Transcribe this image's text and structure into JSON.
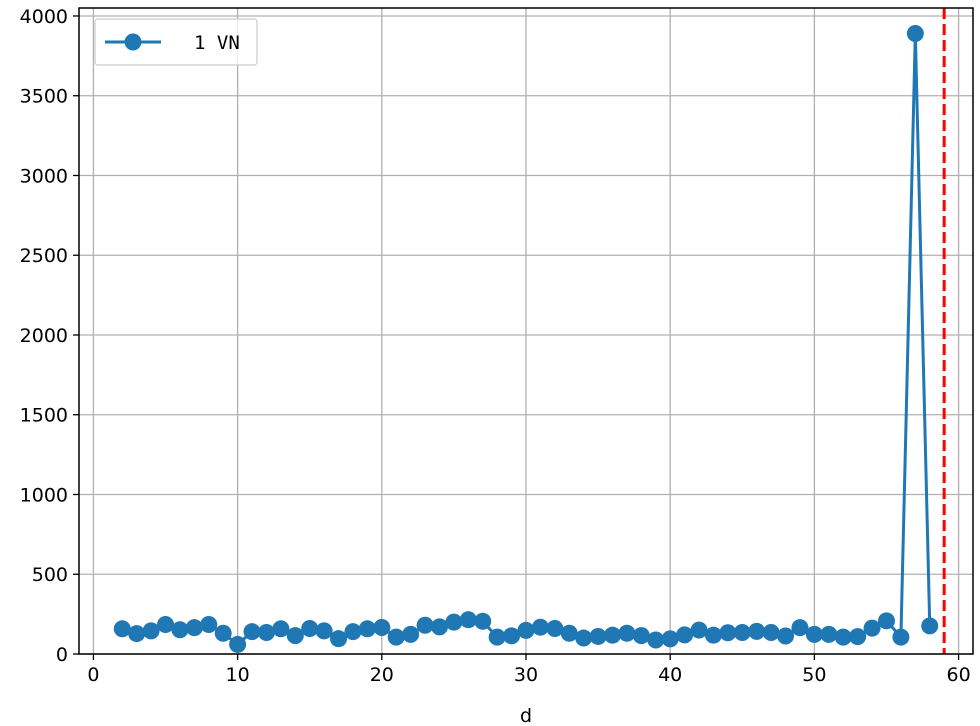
{
  "chart_data": {
    "type": "line",
    "title": "",
    "xlabel": "d",
    "ylabel": "",
    "xlim": [
      -1,
      61
    ],
    "ylim": [
      0,
      4050
    ],
    "x_ticks": [
      0,
      10,
      20,
      30,
      40,
      50,
      60
    ],
    "y_ticks": [
      0,
      500,
      1000,
      1500,
      2000,
      2500,
      3000,
      3500,
      4000
    ],
    "grid": true,
    "legend_position": "upper-left",
    "series": [
      {
        "name": "1 VN",
        "color": "#1f77b4",
        "marker": "circle",
        "x": [
          2,
          3,
          4,
          5,
          6,
          7,
          8,
          9,
          10,
          11,
          12,
          13,
          14,
          15,
          16,
          17,
          18,
          19,
          20,
          21,
          22,
          23,
          24,
          25,
          26,
          27,
          28,
          29,
          30,
          31,
          32,
          33,
          34,
          35,
          36,
          37,
          38,
          39,
          40,
          41,
          42,
          43,
          44,
          45,
          46,
          47,
          48,
          49,
          50,
          51,
          52,
          53,
          54,
          55,
          56,
          57,
          58
        ],
        "y": [
          158,
          128,
          145,
          185,
          152,
          165,
          185,
          130,
          60,
          140,
          135,
          158,
          115,
          160,
          145,
          96,
          140,
          158,
          166,
          106,
          123,
          180,
          170,
          200,
          215,
          205,
          106,
          114,
          148,
          168,
          160,
          130,
          100,
          110,
          118,
          130,
          115,
          88,
          95,
          120,
          150,
          118,
          133,
          135,
          142,
          135,
          113,
          165,
          123,
          123,
          106,
          109,
          162,
          208,
          106,
          3890,
          176
        ]
      }
    ],
    "reference_lines": [
      {
        "orientation": "vertical",
        "x": 59,
        "style": "dashed",
        "color": "#ff0000"
      }
    ]
  }
}
